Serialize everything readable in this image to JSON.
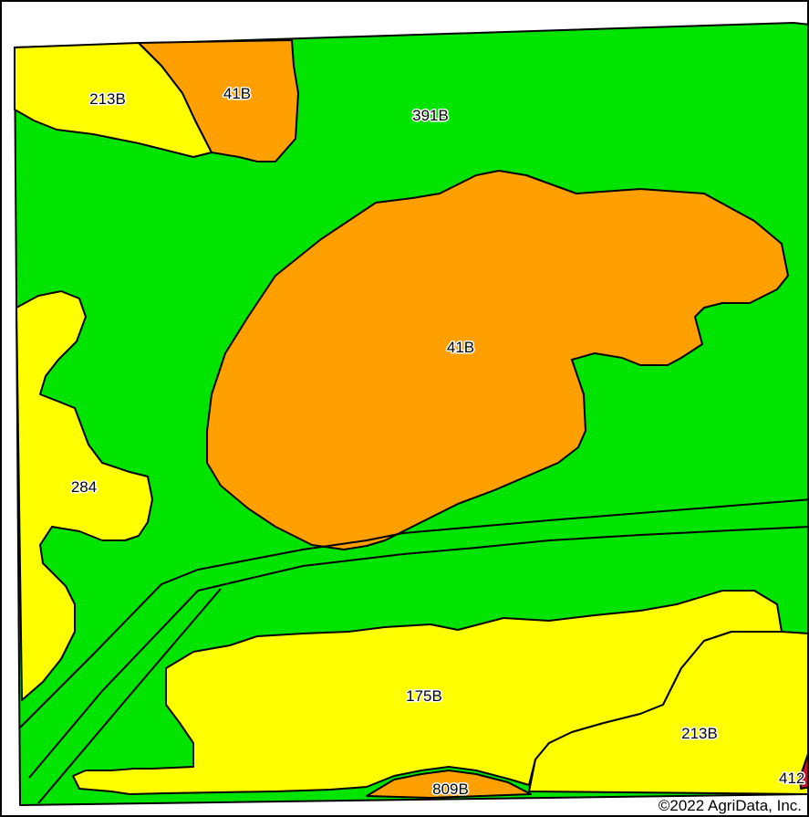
{
  "map": {
    "colors": {
      "green": "#00e400",
      "orange": "#ff9f00",
      "yellow": "#ffff00",
      "red": "#c8102e",
      "outline": "#000000"
    },
    "soil_units": [
      {
        "symbol": "213B"
      },
      {
        "symbol": "41B"
      },
      {
        "symbol": "391B"
      },
      {
        "symbol": "41B"
      },
      {
        "symbol": "284"
      },
      {
        "symbol": "175B"
      },
      {
        "symbol": "213B"
      },
      {
        "symbol": "809B"
      },
      {
        "symbol": "412"
      }
    ],
    "copyright": "©2022 AgriData, Inc."
  }
}
